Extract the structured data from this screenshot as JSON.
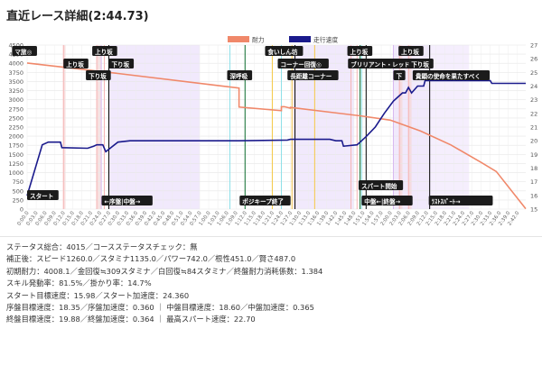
{
  "page": {
    "title": "直近レース詳細(2:44.73)"
  },
  "chart_data": {
    "type": "line",
    "legend": [
      {
        "name": "耐力",
        "color": "#f0886a"
      },
      {
        "name": "走行速度",
        "color": "#1a1a8c"
      }
    ],
    "left_axis": {
      "min": 0,
      "max": 4500,
      "ticks": [
        "0",
        "250",
        "500",
        "750",
        "1000",
        "1250",
        "1500",
        "1750",
        "2000",
        "2250",
        "2500",
        "2750",
        "3000",
        "3250",
        "3500",
        "3750",
        "4000",
        "4250",
        "4500"
      ]
    },
    "right_axis": {
      "min": 15,
      "max": 27,
      "ticks": [
        "15",
        "16",
        "17",
        "18",
        "19",
        "20",
        "21",
        "22",
        "23",
        "24",
        "25",
        "26",
        "27"
      ]
    },
    "x_range": [
      0,
      164.73
    ],
    "x_ticks": [
      "0:00.0",
      "0:03.0",
      "0:06.0",
      "0:09.0",
      "0:12.0",
      "0:15.0",
      "0:18.0",
      "0:21.0",
      "0:24.0",
      "0:27.0",
      "0:30.0",
      "0:33.0",
      "0:36.0",
      "0:39.0",
      "0:42.0",
      "0:45.0",
      "0:48.0",
      "0:51.0",
      "0:54.0",
      "0:57.0",
      "1:00.0",
      "1:03.0",
      "1:06.0",
      "1:09.0",
      "1:12.0",
      "1:15.0",
      "1:18.0",
      "1:21.0",
      "1:24.0",
      "1:27.0",
      "1:30.0",
      "1:33.0",
      "1:36.0",
      "1:39.0",
      "1:42.0",
      "1:45.0",
      "1:48.0",
      "1:51.0",
      "1:54.0",
      "1:57.0",
      "2:00.0",
      "2:03.0",
      "2:06.0",
      "2:09.0",
      "2:12.0",
      "2:15.0",
      "2:18.0",
      "2:21.0",
      "2:24.0",
      "2:27.0",
      "2:30.0",
      "2:33.0",
      "2:36.0",
      "2:39.0",
      "2:42.0"
    ],
    "stamina_series": {
      "name": "耐力",
      "points": [
        [
          0,
          4008
        ],
        [
          30,
          3720
        ],
        [
          60,
          3420
        ],
        [
          70,
          3320
        ],
        [
          70,
          2800
        ],
        [
          84,
          2700
        ],
        [
          84,
          2810
        ],
        [
          85,
          2810
        ],
        [
          87,
          2770
        ],
        [
          87,
          2790
        ],
        [
          110,
          2560
        ],
        [
          120,
          2440
        ],
        [
          130,
          2140
        ],
        [
          140,
          1760
        ],
        [
          150,
          1280
        ],
        [
          155,
          1030
        ],
        [
          164.73,
          10
        ]
      ]
    },
    "speed_series": {
      "name": "走行速度",
      "points": [
        [
          0,
          15.98
        ],
        [
          5,
          19.7
        ],
        [
          7,
          19.9
        ],
        [
          11,
          19.9
        ],
        [
          11.5,
          19.5
        ],
        [
          20,
          19.45
        ],
        [
          22,
          19.6
        ],
        [
          23,
          19.7
        ],
        [
          25,
          19.7
        ],
        [
          26,
          19.2
        ],
        [
          28,
          19.55
        ],
        [
          30,
          19.9
        ],
        [
          34,
          20.0
        ],
        [
          50,
          20.0
        ],
        [
          70,
          20.0
        ],
        [
          86,
          20.05
        ],
        [
          87,
          20.1
        ],
        [
          100,
          20.1
        ],
        [
          102,
          20.0
        ],
        [
          104,
          20.0
        ],
        [
          104.5,
          19.6
        ],
        [
          109,
          19.7
        ],
        [
          112,
          20.3
        ],
        [
          115,
          21.0
        ],
        [
          118,
          22.0
        ],
        [
          121,
          22.9
        ],
        [
          124,
          23.5
        ],
        [
          125,
          23.5
        ],
        [
          126,
          23.9
        ],
        [
          127,
          23.5
        ],
        [
          129,
          24.0
        ],
        [
          131,
          24.0
        ],
        [
          131.5,
          24.4
        ],
        [
          145,
          24.4
        ],
        [
          153,
          24.4
        ],
        [
          153.5,
          24.2
        ],
        [
          164.73,
          24.2
        ]
      ]
    },
    "events": [
      {
        "label": "スタート",
        "t": 0
      },
      {
        "label": "上り坂",
        "t": 12
      },
      {
        "label": "下り坂",
        "t": 23
      },
      {
        "label": "上り坂",
        "t": 24.5
      },
      {
        "label": "下り坂",
        "t": 27
      },
      {
        "label": "←序盤|中盤→",
        "t": 27
      },
      {
        "label": "深呼吸",
        "t": 67
      },
      {
        "label": "ポジキープ終了",
        "t": 72
      },
      {
        "label": "食いしん坊",
        "t": 81
      },
      {
        "label": "コーナー回復◎",
        "t": 84
      },
      {
        "label": "長距離コーナー",
        "t": 87.5
      },
      {
        "label": "上り坂",
        "t": 107
      },
      {
        "label": "ブリリアント・レッド",
        "t": 109
      },
      {
        "label": "スパート開始",
        "t": 111
      },
      {
        "label": "中盤←|終盤→",
        "t": 112
      },
      {
        "label": "上り坂",
        "t": 123
      },
      {
        "label": "下り坂",
        "t": 126
      },
      {
        "label": "下",
        "t": 121
      },
      {
        "label": "貴顕の使命を果たすべく",
        "t": 125
      },
      {
        "label": "ﾗｽﾄｽﾊﾟｰﾄ→",
        "t": 133
      },
      {
        "label": "マ旅◎",
        "t": 1
      }
    ]
  },
  "stats": {
    "lines": [
      "ステータス総合：4015／コースステータスチェック：無",
      "補正後：スピード1260.0／スタミナ1135.0／パワー742.0／根性451.0／賢さ487.0",
      "初期耐力：4008.1／金回復≒309スタミナ／白回復≒84スタミナ／終盤耐力消耗係数：1.384",
      "スキル発動率：81.5%／掛かり率：14.7%",
      "スタート目標速度：15.98／スタート加速度：24.360",
      "序盤目標速度：18.35／序盤加速度：0.360 ｜ 中盤目標速度：18.60／中盤加速度：0.365",
      "終盤目標速度：19.88／終盤加速度：0.364 ｜ 最高スパート速度：22.70"
    ]
  }
}
